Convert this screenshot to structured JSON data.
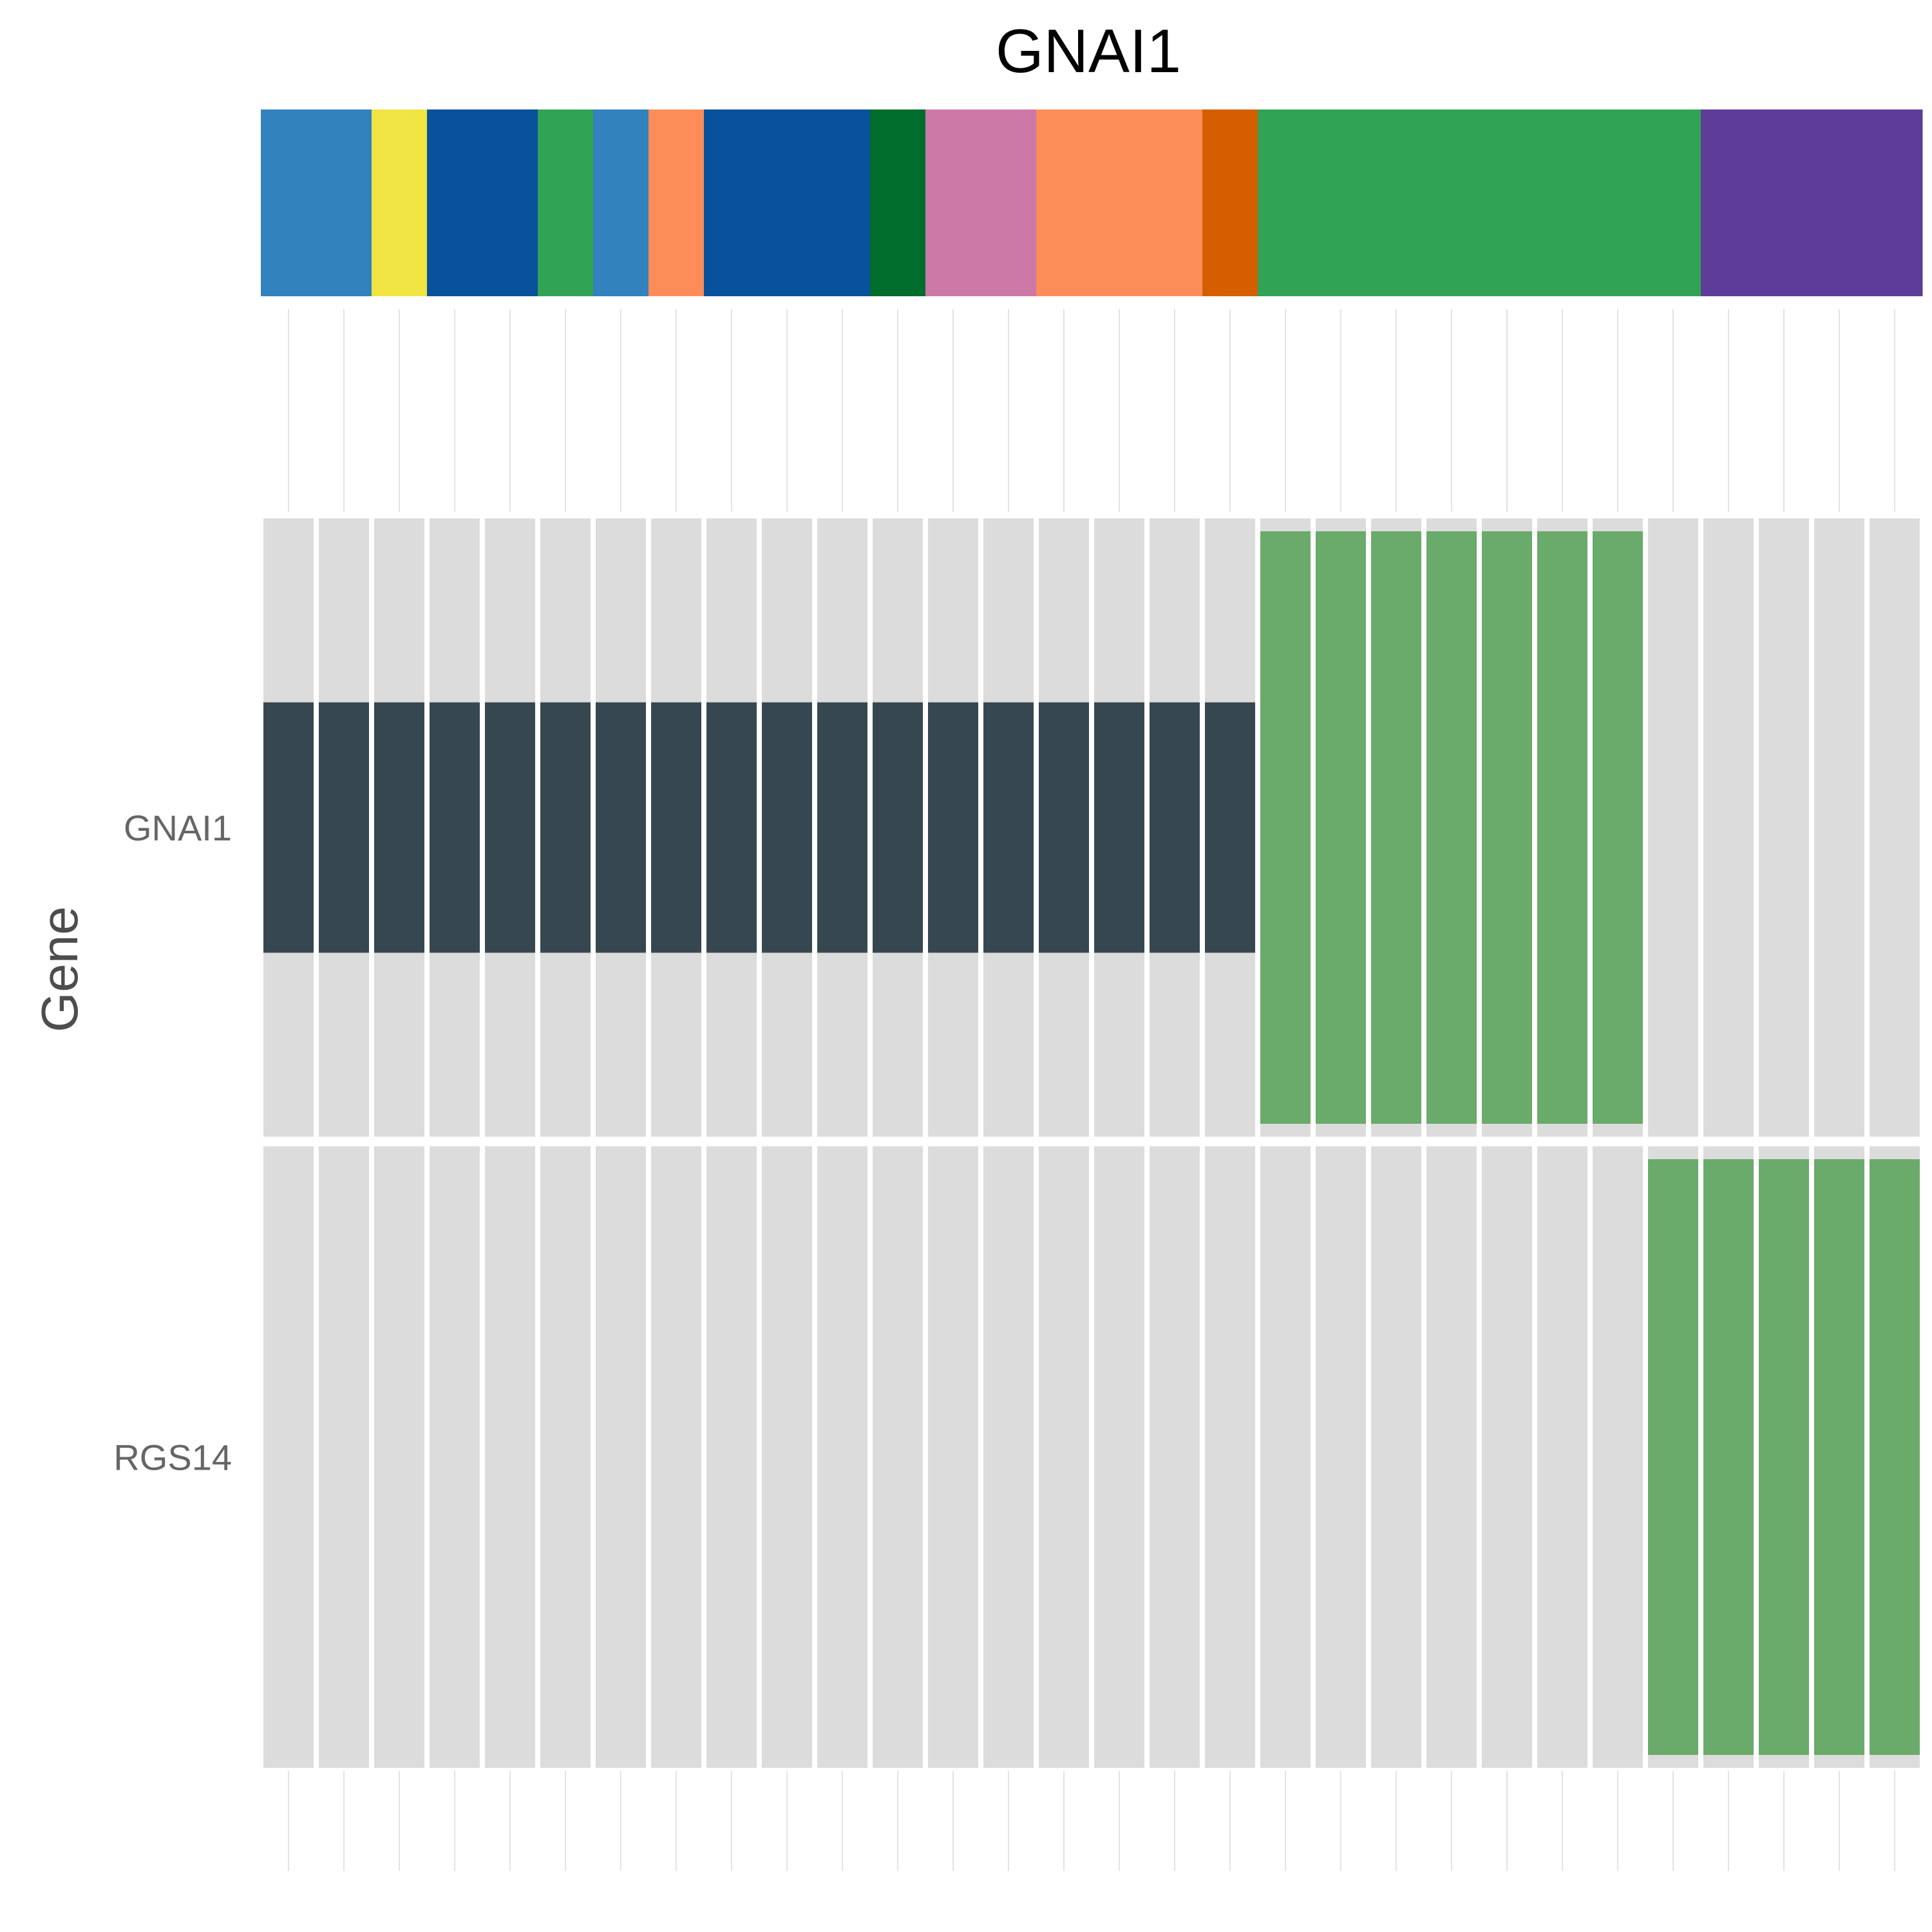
{
  "chart_data": {
    "type": "heatmap",
    "title": "GNAI1",
    "xlabel": "",
    "ylabel": "Gene",
    "rows": [
      "GNAI1",
      "RGS14"
    ],
    "n_samples": 30,
    "annotation_segments": [
      {
        "span": 2,
        "color": "#3282bd"
      },
      {
        "span": 1,
        "color": "#f0e442"
      },
      {
        "span": 2,
        "color": "#08519c"
      },
      {
        "span": 1,
        "color": "#31a354"
      },
      {
        "span": 1,
        "color": "#3282bd"
      },
      {
        "span": 1,
        "color": "#fc8d59"
      },
      {
        "span": 3,
        "color": "#08519c"
      },
      {
        "span": 1,
        "color": "#006d2c"
      },
      {
        "span": 2,
        "color": "#cc79a7"
      },
      {
        "span": 3,
        "color": "#fc8d59"
      },
      {
        "span": 1,
        "color": "#d55e00"
      },
      {
        "span": 8,
        "color": "#31a354"
      },
      {
        "span": 4,
        "color": "#5e3c99"
      }
    ],
    "cells": {
      "GNAI1": [
        "amp",
        "amp",
        "amp",
        "amp",
        "amp",
        "amp",
        "amp",
        "amp",
        "amp",
        "amp",
        "amp",
        "amp",
        "amp",
        "amp",
        "amp",
        "amp",
        "amp",
        "amp",
        "mut",
        "mut",
        "mut",
        "mut",
        "mut",
        "mut",
        "mut",
        "none",
        "none",
        "none",
        "none",
        "none"
      ],
      "RGS14": [
        "none",
        "none",
        "none",
        "none",
        "none",
        "none",
        "none",
        "none",
        "none",
        "none",
        "none",
        "none",
        "none",
        "none",
        "none",
        "none",
        "none",
        "none",
        "none",
        "none",
        "none",
        "none",
        "none",
        "none",
        "none",
        "mut",
        "mut",
        "mut",
        "mut",
        "mut"
      ]
    },
    "colors": {
      "background": "#dcdcdc",
      "amp": "#37474f",
      "mut": "#6aaa6a",
      "gridline": "#e3e3e3"
    },
    "grid": true,
    "legend": "none"
  }
}
